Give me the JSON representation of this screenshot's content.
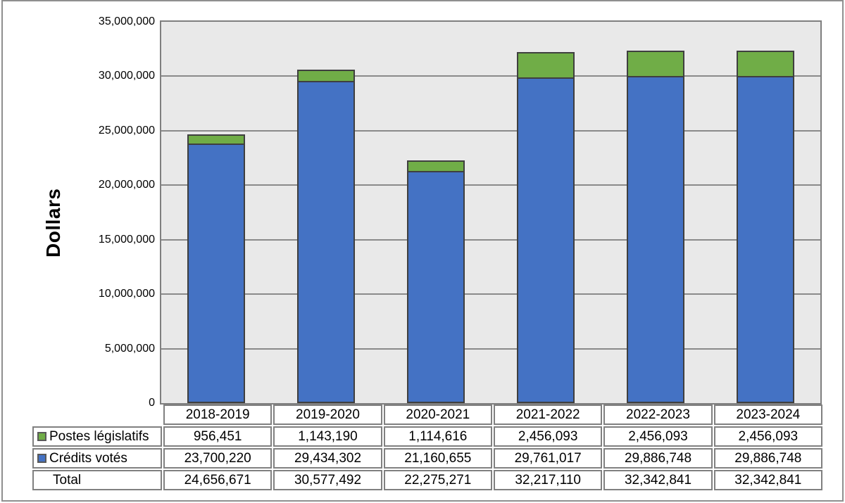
{
  "chart_data": {
    "type": "bar",
    "stacked": true,
    "ylabel": "Dollars",
    "categories": [
      "2018-2019",
      "2019-2020",
      "2020-2021",
      "2021-2022",
      "2022-2023",
      "2023-2024"
    ],
    "series": [
      {
        "name": "Postes législatifs",
        "color": "#70AD47",
        "values": [
          956451,
          1143190,
          1114616,
          2456093,
          2456093,
          2456093
        ]
      },
      {
        "name": "Crédits votés",
        "color": "#4472C4",
        "values": [
          23700220,
          29434302,
          21160655,
          29761017,
          29886748,
          29886748
        ]
      }
    ],
    "totals": [
      24656671,
      30577492,
      22275271,
      32217110,
      32342841,
      32342841
    ],
    "ylim": [
      0,
      35000000
    ],
    "ytick_step": 5000000,
    "ytick_labels": [
      "0",
      "5,000,000",
      "10,000,000",
      "15,000,000",
      "20,000,000",
      "25,000,000",
      "30,000,000",
      "35,000,000"
    ],
    "grid": true,
    "legend_position": "table-left"
  },
  "table": {
    "header_row": [
      "2018-2019",
      "2019-2020",
      "2020-2021",
      "2021-2022",
      "2022-2023",
      "2023-2024"
    ],
    "rows": [
      {
        "label": "Postes législatifs",
        "swatch_color": "#70AD47",
        "values": [
          "956,451",
          "1,143,190",
          "1,114,616",
          "2,456,093",
          "2,456,093",
          "2,456,093"
        ]
      },
      {
        "label": "Crédits votés",
        "swatch_color": "#4472C4",
        "values": [
          "23,700,220",
          "29,434,302",
          "21,160,655",
          "29,761,017",
          "29,886,748",
          "29,886,748"
        ]
      },
      {
        "label": "Total",
        "swatch_color": null,
        "values": [
          "24,656,671",
          "30,577,492",
          "22,275,271",
          "32,217,110",
          "32,342,841",
          "32,342,841"
        ]
      }
    ]
  },
  "colors": {
    "plot_background": "#E9E9E9",
    "gridline": "#8A8A8A",
    "plot_border": "#7F7F7F",
    "bar_border": "#3F3F3F",
    "table_border": "#808080",
    "figure_border": "#8F8F8F",
    "series_green": "#70AD47",
    "series_blue": "#4472C4"
  }
}
